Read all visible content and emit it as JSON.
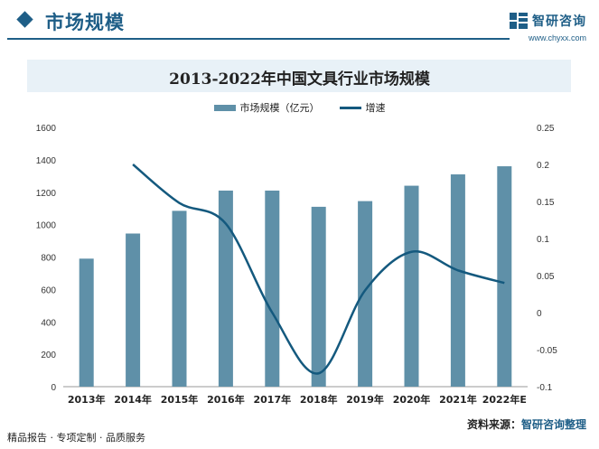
{
  "header": {
    "section_title": "市场规模",
    "brand_name": "智研咨询",
    "brand_url": "www.chyxx.com"
  },
  "colors": {
    "accent": "#1e5e87",
    "bar": "#5f90a8",
    "line": "#14597e",
    "title_band": "#e8f1f7"
  },
  "chart_data": {
    "type": "bar",
    "title": "2013-2022年中国文具行业市场规模",
    "categories": [
      "2013年",
      "2014年",
      "2015年",
      "2016年",
      "2017年",
      "2018年",
      "2019年",
      "2020年",
      "2021年",
      "2022年E"
    ],
    "series": [
      {
        "name": "市场规模（亿元）",
        "type": "bar",
        "axis": "left",
        "values": [
          790,
          945,
          1085,
          1210,
          1210,
          1110,
          1145,
          1240,
          1310,
          1360
        ]
      },
      {
        "name": "增速",
        "type": "line",
        "axis": "right",
        "values": [
          null,
          0.2,
          0.148,
          0.12,
          0.0,
          -0.082,
          0.03,
          0.082,
          0.057,
          0.04
        ]
      }
    ],
    "y_left": {
      "min": 0,
      "max": 1600,
      "ticks": [
        "0",
        "200",
        "400",
        "600",
        "800",
        "1000",
        "1200",
        "1400",
        "1600"
      ]
    },
    "y_right": {
      "min": -0.1,
      "max": 0.25,
      "ticks": [
        "-0.1",
        "-0.05",
        "0",
        "0.05",
        "0.1",
        "0.15",
        "0.2",
        "0.25"
      ]
    },
    "grid": false,
    "legend_position": "top-center"
  },
  "footer": {
    "left_text": "精品报告 · 专项定制 · 品质服务",
    "source_label": "资料来源：",
    "source_name": "智研咨询整理"
  }
}
